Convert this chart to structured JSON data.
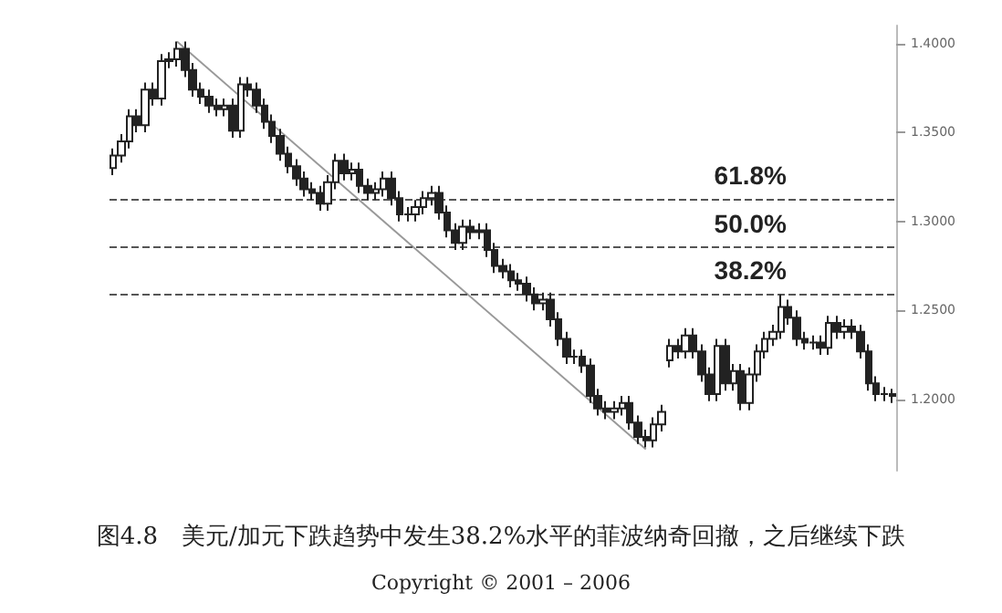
{
  "chart_data": {
    "type": "candlestick",
    "title": "图4.8　美元/加元下跌趋势中发生38.2%水平的菲波纳奇回撤，之后继续下跌",
    "annotations": [
      "Copyright © 2001 – 2006",
      {
        "text": "61.8%",
        "y": 1.3125
      },
      {
        "text": "50.0%",
        "y": 1.2855
      },
      {
        "text": "38.2%",
        "y": 1.2595
      }
    ],
    "categories": [
      null,
      null,
      null,
      null,
      null,
      null,
      null,
      null,
      null,
      null,
      null,
      null,
      null,
      null,
      null,
      null,
      null,
      null,
      null,
      null,
      null,
      null,
      null,
      null,
      null,
      null,
      null,
      null,
      null,
      null,
      null,
      null,
      null,
      null,
      null,
      null,
      null,
      null,
      null,
      null,
      null,
      null,
      null,
      null,
      null,
      null,
      null,
      null,
      null,
      null,
      null,
      null,
      null,
      null,
      null,
      null,
      null,
      null,
      null,
      null,
      null,
      null,
      null,
      null,
      null,
      null,
      null,
      null,
      null,
      null,
      null,
      null,
      null,
      null,
      null,
      null,
      null,
      null,
      null,
      null,
      null,
      null,
      null,
      null,
      null,
      null,
      null,
      null,
      null,
      null,
      null,
      null,
      null,
      null,
      null,
      null,
      null,
      null,
      null
    ],
    "ylim": [
      1.16,
      1.41
    ],
    "yticks": [
      {
        "value": 1.2,
        "label": "1.2000"
      },
      {
        "value": 1.25,
        "label": "1.2500"
      },
      {
        "value": 1.3,
        "label": "1.3000"
      },
      {
        "value": 1.35,
        "label": "1.3500"
      },
      {
        "value": 1.4,
        "label": "1.4000"
      }
    ],
    "tick_labels": "y",
    "grid": false,
    "ref_lines": [
      {
        "axis": "y",
        "value": 1.3125,
        "color": "#555555",
        "line_style": "dashed"
      },
      {
        "axis": "y",
        "value": 1.2855,
        "color": "#555555",
        "line_style": "dashed"
      },
      {
        "axis": "y",
        "value": 1.2595,
        "color": "#555555",
        "line_style": "dashed"
      }
    ],
    "series": [
      {
        "color": "#222222",
        "ohlc": [
          [
            1.33,
            1.341,
            1.326,
            1.337
          ],
          [
            1.337,
            1.349,
            1.333,
            1.345
          ],
          [
            1.345,
            1.363,
            1.341,
            1.359
          ],
          [
            1.359,
            1.363,
            1.35,
            1.354
          ],
          [
            1.354,
            1.378,
            1.35,
            1.374
          ],
          [
            1.374,
            1.378,
            1.365,
            1.369
          ],
          [
            1.369,
            1.394,
            1.365,
            1.39
          ],
          [
            1.39,
            1.395,
            1.386,
            1.391
          ],
          [
            1.391,
            1.401,
            1.387,
            1.397
          ],
          [
            1.397,
            1.401,
            1.381,
            1.385
          ],
          [
            1.385,
            1.389,
            1.37,
            1.374
          ],
          [
            1.374,
            1.378,
            1.366,
            1.37
          ],
          [
            1.37,
            1.374,
            1.361,
            1.365
          ],
          [
            1.365,
            1.369,
            1.359,
            1.363
          ],
          [
            1.363,
            1.369,
            1.359,
            1.365
          ],
          [
            1.365,
            1.369,
            1.347,
            1.351
          ],
          [
            1.351,
            1.381,
            1.347,
            1.377
          ],
          [
            1.377,
            1.381,
            1.37,
            1.374
          ],
          [
            1.374,
            1.378,
            1.361,
            1.365
          ],
          [
            1.365,
            1.369,
            1.352,
            1.356
          ],
          [
            1.356,
            1.36,
            1.344,
            1.348
          ],
          [
            1.348,
            1.352,
            1.334,
            1.338
          ],
          [
            1.338,
            1.342,
            1.327,
            1.331
          ],
          [
            1.331,
            1.335,
            1.32,
            1.324
          ],
          [
            1.324,
            1.328,
            1.314,
            1.318
          ],
          [
            1.318,
            1.322,
            1.312,
            1.316
          ],
          [
            1.316,
            1.32,
            1.306,
            1.31
          ],
          [
            1.31,
            1.326,
            1.306,
            1.322
          ],
          [
            1.322,
            1.338,
            1.318,
            1.334
          ],
          [
            1.334,
            1.338,
            1.323,
            1.327
          ],
          [
            1.327,
            1.333,
            1.323,
            1.329
          ],
          [
            1.329,
            1.333,
            1.316,
            1.32
          ],
          [
            1.32,
            1.324,
            1.312,
            1.316
          ],
          [
            1.316,
            1.322,
            1.312,
            1.318
          ],
          [
            1.318,
            1.328,
            1.314,
            1.324
          ],
          [
            1.324,
            1.328,
            1.309,
            1.313
          ],
          [
            1.313,
            1.317,
            1.3,
            1.304
          ],
          [
            1.304,
            1.308,
            1.3,
            1.304
          ],
          [
            1.304,
            1.312,
            1.3,
            1.308
          ],
          [
            1.308,
            1.317,
            1.304,
            1.313
          ],
          [
            1.313,
            1.32,
            1.309,
            1.316
          ],
          [
            1.316,
            1.32,
            1.301,
            1.305
          ],
          [
            1.305,
            1.309,
            1.291,
            1.295
          ],
          [
            1.295,
            1.299,
            1.284,
            1.288
          ],
          [
            1.288,
            1.301,
            1.284,
            1.297
          ],
          [
            1.297,
            1.301,
            1.29,
            1.294
          ],
          [
            1.294,
            1.299,
            1.29,
            1.295
          ],
          [
            1.295,
            1.299,
            1.28,
            1.284
          ],
          [
            1.284,
            1.288,
            1.271,
            1.275
          ],
          [
            1.275,
            1.279,
            1.268,
            1.272
          ],
          [
            1.272,
            1.276,
            1.263,
            1.267
          ],
          [
            1.267,
            1.271,
            1.261,
            1.265
          ],
          [
            1.265,
            1.269,
            1.255,
            1.259
          ],
          [
            1.259,
            1.263,
            1.25,
            1.254
          ],
          [
            1.254,
            1.26,
            1.25,
            1.256
          ],
          [
            1.256,
            1.26,
            1.241,
            1.245
          ],
          [
            1.245,
            1.249,
            1.23,
            1.234
          ],
          [
            1.234,
            1.238,
            1.22,
            1.224
          ],
          [
            1.224,
            1.228,
            1.22,
            1.224
          ],
          [
            1.224,
            1.228,
            1.215,
            1.219
          ],
          [
            1.219,
            1.223,
            1.198,
            1.202
          ],
          [
            1.202,
            1.206,
            1.191,
            1.195
          ],
          [
            1.195,
            1.199,
            1.189,
            1.193
          ],
          [
            1.193,
            1.199,
            1.189,
            1.195
          ],
          [
            1.195,
            1.202,
            1.191,
            1.198
          ],
          [
            1.198,
            1.202,
            1.183,
            1.187
          ],
          [
            1.187,
            1.191,
            1.175,
            1.179
          ],
          [
            1.179,
            1.183,
            1.173,
            1.177
          ],
          [
            1.177,
            1.19,
            1.173,
            1.186
          ],
          [
            1.186,
            1.197,
            1.182,
            1.193
          ],
          [
            1.222,
            1.234,
            1.218,
            1.23
          ],
          [
            1.23,
            1.234,
            1.223,
            1.227
          ],
          [
            1.227,
            1.24,
            1.223,
            1.236
          ],
          [
            1.236,
            1.24,
            1.223,
            1.227
          ],
          [
            1.227,
            1.231,
            1.21,
            1.214
          ],
          [
            1.214,
            1.218,
            1.199,
            1.203
          ],
          [
            1.203,
            1.234,
            1.199,
            1.23
          ],
          [
            1.23,
            1.234,
            1.205,
            1.209
          ],
          [
            1.209,
            1.22,
            1.205,
            1.216
          ],
          [
            1.216,
            1.22,
            1.194,
            1.198
          ],
          [
            1.198,
            1.218,
            1.194,
            1.214
          ],
          [
            1.214,
            1.231,
            1.21,
            1.227
          ],
          [
            1.227,
            1.238,
            1.223,
            1.234
          ],
          [
            1.234,
            1.242,
            1.23,
            1.238
          ],
          [
            1.238,
            1.259,
            1.234,
            1.252
          ],
          [
            1.252,
            1.256,
            1.242,
            1.246
          ],
          [
            1.246,
            1.25,
            1.23,
            1.234
          ],
          [
            1.234,
            1.238,
            1.228,
            1.232
          ],
          [
            1.232,
            1.236,
            1.228,
            1.232
          ],
          [
            1.232,
            1.236,
            1.225,
            1.229
          ],
          [
            1.229,
            1.247,
            1.225,
            1.243
          ],
          [
            1.243,
            1.247,
            1.234,
            1.238
          ],
          [
            1.238,
            1.245,
            1.234,
            1.241
          ],
          [
            1.241,
            1.245,
            1.234,
            1.238
          ],
          [
            1.238,
            1.242,
            1.223,
            1.227
          ],
          [
            1.227,
            1.231,
            1.205,
            1.209
          ],
          [
            1.209,
            1.213,
            1.199,
            1.203
          ],
          [
            1.203,
            1.207,
            1.199,
            1.203
          ],
          [
            1.203,
            1.206,
            1.198,
            1.202
          ]
        ]
      },
      {
        "type": "line",
        "color": "#999999",
        "values": [
          null,
          null,
          null,
          null,
          null,
          null,
          null,
          null,
          1.401,
          null,
          null,
          null,
          null,
          null,
          null,
          null,
          null,
          null,
          null,
          null,
          null,
          null,
          null,
          null,
          null,
          null,
          null,
          null,
          null,
          null,
          null,
          null,
          null,
          null,
          null,
          null,
          null,
          null,
          null,
          null,
          null,
          null,
          null,
          null,
          null,
          null,
          null,
          null,
          null,
          null,
          null,
          null,
          null,
          null,
          null,
          null,
          null,
          null,
          null,
          null,
          null,
          null,
          null,
          null,
          null,
          null,
          null,
          1.172,
          null,
          null,
          null,
          null,
          null,
          null,
          null,
          null,
          null,
          null,
          null,
          null,
          null,
          null,
          null,
          null,
          null,
          null,
          null,
          null,
          null,
          null,
          null,
          null,
          null,
          null,
          null,
          null,
          null,
          null,
          null
        ]
      }
    ]
  }
}
